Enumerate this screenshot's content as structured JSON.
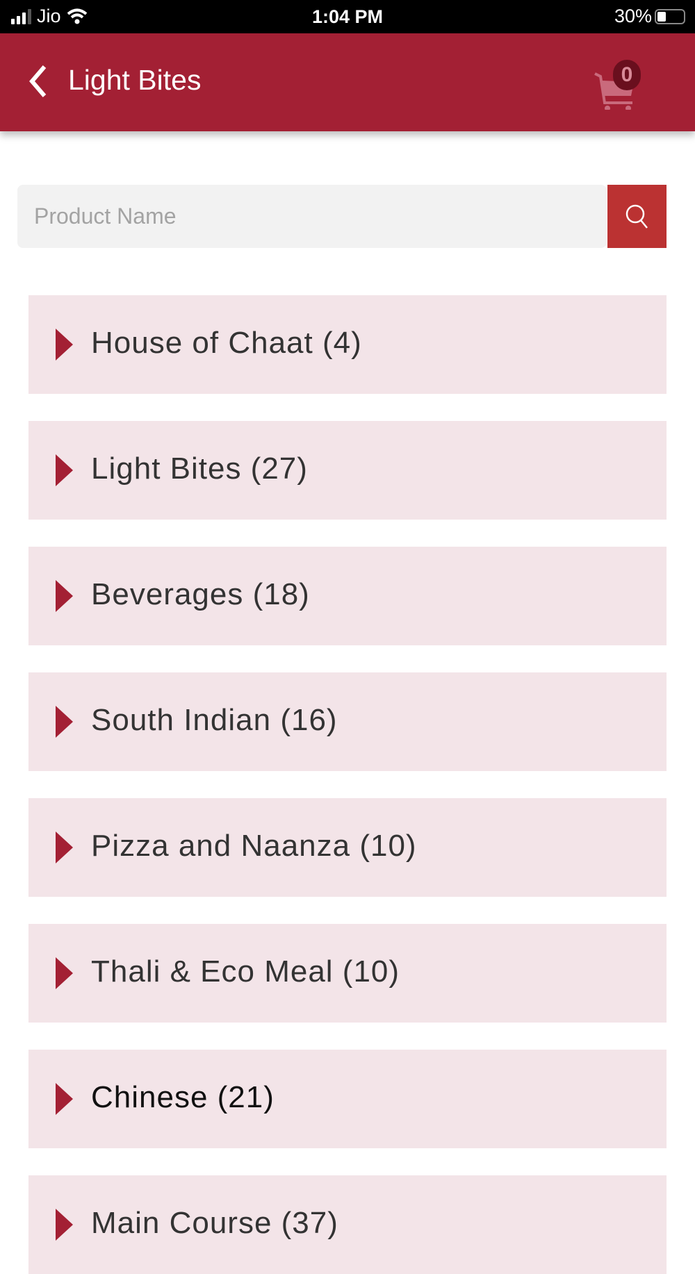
{
  "status_bar": {
    "carrier": "Jio",
    "time": "1:04 PM",
    "battery": "30%",
    "battery_level": 0.3
  },
  "header": {
    "title": "Light Bites",
    "cart_count": "0",
    "color": "#a32034"
  },
  "search": {
    "placeholder": "Product Name",
    "value": ""
  },
  "categories": [
    {
      "label": "House of Chaat (4)"
    },
    {
      "label": "Light Bites (27)"
    },
    {
      "label": "Beverages (18)"
    },
    {
      "label": "South Indian (16)"
    },
    {
      "label": "Pizza and Naanza (10)"
    },
    {
      "label": "Thali & Eco Meal (10)"
    },
    {
      "label": "Chinese (21)"
    },
    {
      "label": "Main Course (37)"
    }
  ]
}
